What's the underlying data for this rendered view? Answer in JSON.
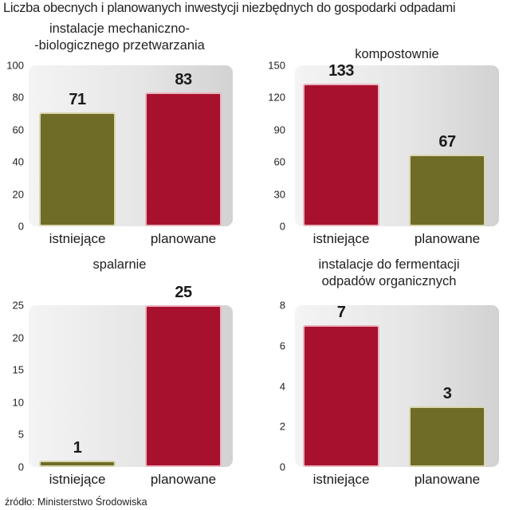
{
  "title": "Liczba obecnych i planowanych inwestycji niezbędnych do gospodarki odpadami",
  "source": "źródło: Ministerstwo Środowiska",
  "colors": {
    "olive": "#6f6c27",
    "red": "#a8112d"
  },
  "chart_data": [
    {
      "type": "bar",
      "title": "instalacje mechaniczno-\n-biologicznego przetwarzania",
      "categories": [
        "istniejące",
        "planowane"
      ],
      "values": [
        71,
        83
      ],
      "colors": [
        "olive",
        "red"
      ],
      "ylim": [
        0,
        100
      ],
      "yticks": [
        0,
        20,
        40,
        60,
        80,
        100
      ]
    },
    {
      "type": "bar",
      "title": "kompostownie",
      "categories": [
        "istniejące",
        "planowane"
      ],
      "values": [
        133,
        67
      ],
      "colors": [
        "red",
        "olive"
      ],
      "ylim": [
        0,
        150
      ],
      "yticks": [
        0,
        30,
        60,
        90,
        120,
        150
      ]
    },
    {
      "type": "bar",
      "title": "spalarnie",
      "categories": [
        "istniejące",
        "planowane"
      ],
      "values": [
        1,
        25
      ],
      "colors": [
        "olive",
        "red"
      ],
      "ylim": [
        0,
        25
      ],
      "yticks": [
        0,
        5,
        10,
        15,
        20,
        25
      ]
    },
    {
      "type": "bar",
      "title": "instalacje do fermentacji\nodpadów organicznych",
      "categories": [
        "istniejące",
        "planowane"
      ],
      "values": [
        7,
        3
      ],
      "colors": [
        "red",
        "olive"
      ],
      "ylim": [
        0,
        8
      ],
      "yticks": [
        0,
        2,
        4,
        6,
        8
      ]
    }
  ]
}
